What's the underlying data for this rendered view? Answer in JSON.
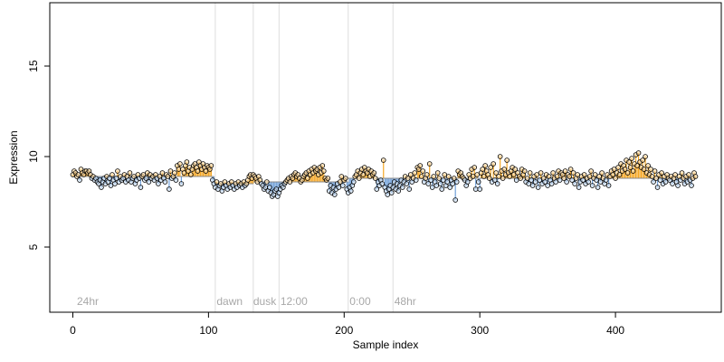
{
  "chart_data": {
    "type": "stem-scatter",
    "xlabel": "Sample index",
    "ylabel": "Expression",
    "xlim": [
      -17,
      478
    ],
    "ylim": [
      1.4,
      18.5
    ],
    "xticks": [
      0,
      100,
      200,
      300,
      400
    ],
    "yticks": [
      5,
      10,
      15
    ],
    "above_color": "#f5a623",
    "below_color": "#6f9fd8",
    "point_edge_color": "#000000",
    "vline_color": "#dddddd",
    "values": [
      9.0,
      9.2,
      9.1,
      8.9,
      9.0,
      8.7,
      9.3,
      9.1,
      9.0,
      9.2,
      9.2,
      9.1,
      9.2,
      9.0,
      8.8,
      8.9,
      8.7,
      8.8,
      8.6,
      8.5,
      8.7,
      8.3,
      8.6,
      8.8,
      8.5,
      8.9,
      8.6,
      8.8,
      8.4,
      9.0,
      8.7,
      8.5,
      8.8,
      9.2,
      8.6,
      8.9,
      8.7,
      8.8,
      9.0,
      8.6,
      8.9,
      8.7,
      9.1,
      8.6,
      8.8,
      8.9,
      8.5,
      8.7,
      9.0,
      8.8,
      8.3,
      8.9,
      9.0,
      8.7,
      8.8,
      9.1,
      8.6,
      9.0,
      8.8,
      8.9,
      8.7,
      9.0,
      8.8,
      8.5,
      8.9,
      8.7,
      9.1,
      8.8,
      8.6,
      9.0,
      8.9,
      8.2,
      9.2,
      8.8,
      8.9,
      9.1,
      8.7,
      9.5,
      9.3,
      9.6,
      8.5,
      9.3,
      9.1,
      9.5,
      9.7,
      9.2,
      9.4,
      9.0,
      9.3,
      9.5,
      9.6,
      9.4,
      9.2,
      9.7,
      9.5,
      9.3,
      9.6,
      9.4,
      9.2,
      9.5,
      9.4,
      9.3,
      9.5,
      8.7,
      8.5,
      8.3,
      8.6,
      8.2,
      8.4,
      8.5,
      8.1,
      8.3,
      8.6,
      8.4,
      8.2,
      8.5,
      8.3,
      8.6,
      8.4,
      8.2,
      8.5,
      8.3,
      8.6,
      8.4,
      8.5,
      8.3,
      8.6,
      8.4,
      8.5,
      8.7,
      8.9,
      9.0,
      8.8,
      9.0,
      8.9,
      8.8,
      8.6,
      8.9,
      8.7,
      8.5,
      8.4,
      8.2,
      8.3,
      8.6,
      8.1,
      8.3,
      8.0,
      7.8,
      7.9,
      8.1,
      8.2,
      7.8,
      8.0,
      8.2,
      8.4,
      8.3,
      8.5,
      8.6,
      8.7,
      8.8,
      8.6,
      8.9,
      8.8,
      9.0,
      9.1,
      8.9,
      9.0,
      8.8,
      8.6,
      8.7,
      8.9,
      9.0,
      9.1,
      8.8,
      9.2,
      9.0,
      9.3,
      9.1,
      9.4,
      9.2,
      9.3,
      9.0,
      9.4,
      9.1,
      9.5,
      9.2,
      8.8,
      8.7,
      8.8,
      8.1,
      8.4,
      8.0,
      8.3,
      7.9,
      8.2,
      8.5,
      8.3,
      8.6,
      8.9,
      8.4,
      8.7,
      8.8,
      8.2,
      8.0,
      8.3,
      8.1,
      8.4,
      8.6,
      8.9,
      9.0,
      9.2,
      8.8,
      9.1,
      9.3,
      9.0,
      9.4,
      9.2,
      9.1,
      9.3,
      8.9,
      9.2,
      9.0,
      9.1,
      8.8,
      8.2,
      8.6,
      8.4,
      8.7,
      8.5,
      9.8,
      8.3,
      8.1,
      7.9,
      8.2,
      8.4,
      8.0,
      8.3,
      8.6,
      8.2,
      8.5,
      8.1,
      8.4,
      8.7,
      8.3,
      8.6,
      8.9,
      8.5,
      8.8,
      8.2,
      9.0,
      8.6,
      8.8,
      9.1,
      8.7,
      9.4,
      9.3,
      9.5,
      8.9,
      9.2,
      8.6,
      8.8,
      9.0,
      8.5,
      9.6,
      8.7,
      8.3,
      8.9,
      8.6,
      8.4,
      9.1,
      8.8,
      8.5,
      8.2,
      8.7,
      9.0,
      8.4,
      8.6,
      8.9,
      8.3,
      8.7,
      8.5,
      8.8,
      7.6,
      8.6,
      9.2,
      9.0,
      9.1,
      8.9,
      8.8,
      8.7,
      8.4,
      8.6,
      9.0,
      8.8,
      9.3,
      8.9,
      9.4,
      8.2,
      9.0,
      8.6,
      8.2,
      9.1,
      9.3,
      8.9,
      9.5,
      9.2,
      9.0,
      8.8,
      9.4,
      8.6,
      9.6,
      8.7,
      9.1,
      8.5,
      8.9,
      10.0,
      9.2,
      8.8,
      9.3,
      9.0,
      9.8,
      9.1,
      8.9,
      9.2,
      9.4,
      9.0,
      9.3,
      8.7,
      9.1,
      8.9,
      8.8,
      9.3,
      9.0,
      9.2,
      8.6,
      8.8,
      8.5,
      9.1,
      8.7,
      8.4,
      8.9,
      8.6,
      9.0,
      8.3,
      8.7,
      9.1,
      8.5,
      8.8,
      8.6,
      9.0,
      8.4,
      8.9,
      8.7,
      8.5,
      9.1,
      8.8,
      8.6,
      8.9,
      9.2,
      8.7,
      9.1,
      9.0,
      8.8,
      9.2,
      8.6,
      9.0,
      8.9,
      9.3,
      8.7,
      9.1,
      8.5,
      8.8,
      9.0,
      8.3,
      8.6,
      8.9,
      8.7,
      9.0,
      8.5,
      8.8,
      8.6,
      8.9,
      9.2,
      8.4,
      8.8,
      9.0,
      8.7,
      8.3,
      8.9,
      8.6,
      9.1,
      8.8,
      8.5,
      8.7,
      9.0,
      8.4,
      8.9,
      9.2,
      9.0,
      9.3,
      8.8,
      9.1,
      9.4,
      9.0,
      9.6,
      9.2,
      9.5,
      9.3,
      9.8,
      9.1,
      9.7,
      9.4,
      9.9,
      9.2,
      9.6,
      10.1,
      9.5,
      10.2,
      9.7,
      9.4,
      9.8,
      9.3,
      10.0,
      9.1,
      9.5,
      9.0,
      9.3,
      8.9,
      8.6,
      9.2,
      8.8,
      8.3,
      9.0,
      8.7,
      9.1,
      8.5,
      8.9,
      8.6,
      9.0,
      8.8,
      8.7,
      8.9,
      8.5,
      8.8,
      9.0,
      8.6,
      8.4,
      8.9,
      8.7,
      9.1,
      8.8,
      8.5,
      8.9,
      8.6,
      9.0,
      8.7,
      8.4,
      8.8,
      9.1,
      8.9
    ],
    "segments": [
      {
        "start": 0,
        "end": 104,
        "level": 8.9
      },
      {
        "start": 104,
        "end": 133,
        "level": 8.5
      },
      {
        "start": 133,
        "end": 152,
        "level": 8.6
      },
      {
        "start": 152,
        "end": 203,
        "level": 8.6
      },
      {
        "start": 203,
        "end": 236,
        "level": 8.8
      },
      {
        "start": 236,
        "end": 459,
        "level": 8.8
      }
    ],
    "vlines": [
      105,
      133,
      152,
      203,
      236
    ],
    "annotations": [
      {
        "x": 3,
        "text": "24hr"
      },
      {
        "x": 106,
        "text": "dawn"
      },
      {
        "x": 133,
        "text": "dusk"
      },
      {
        "x": 153,
        "text": "12:00"
      },
      {
        "x": 204,
        "text": "0:00"
      },
      {
        "x": 237,
        "text": "48hr"
      }
    ]
  }
}
